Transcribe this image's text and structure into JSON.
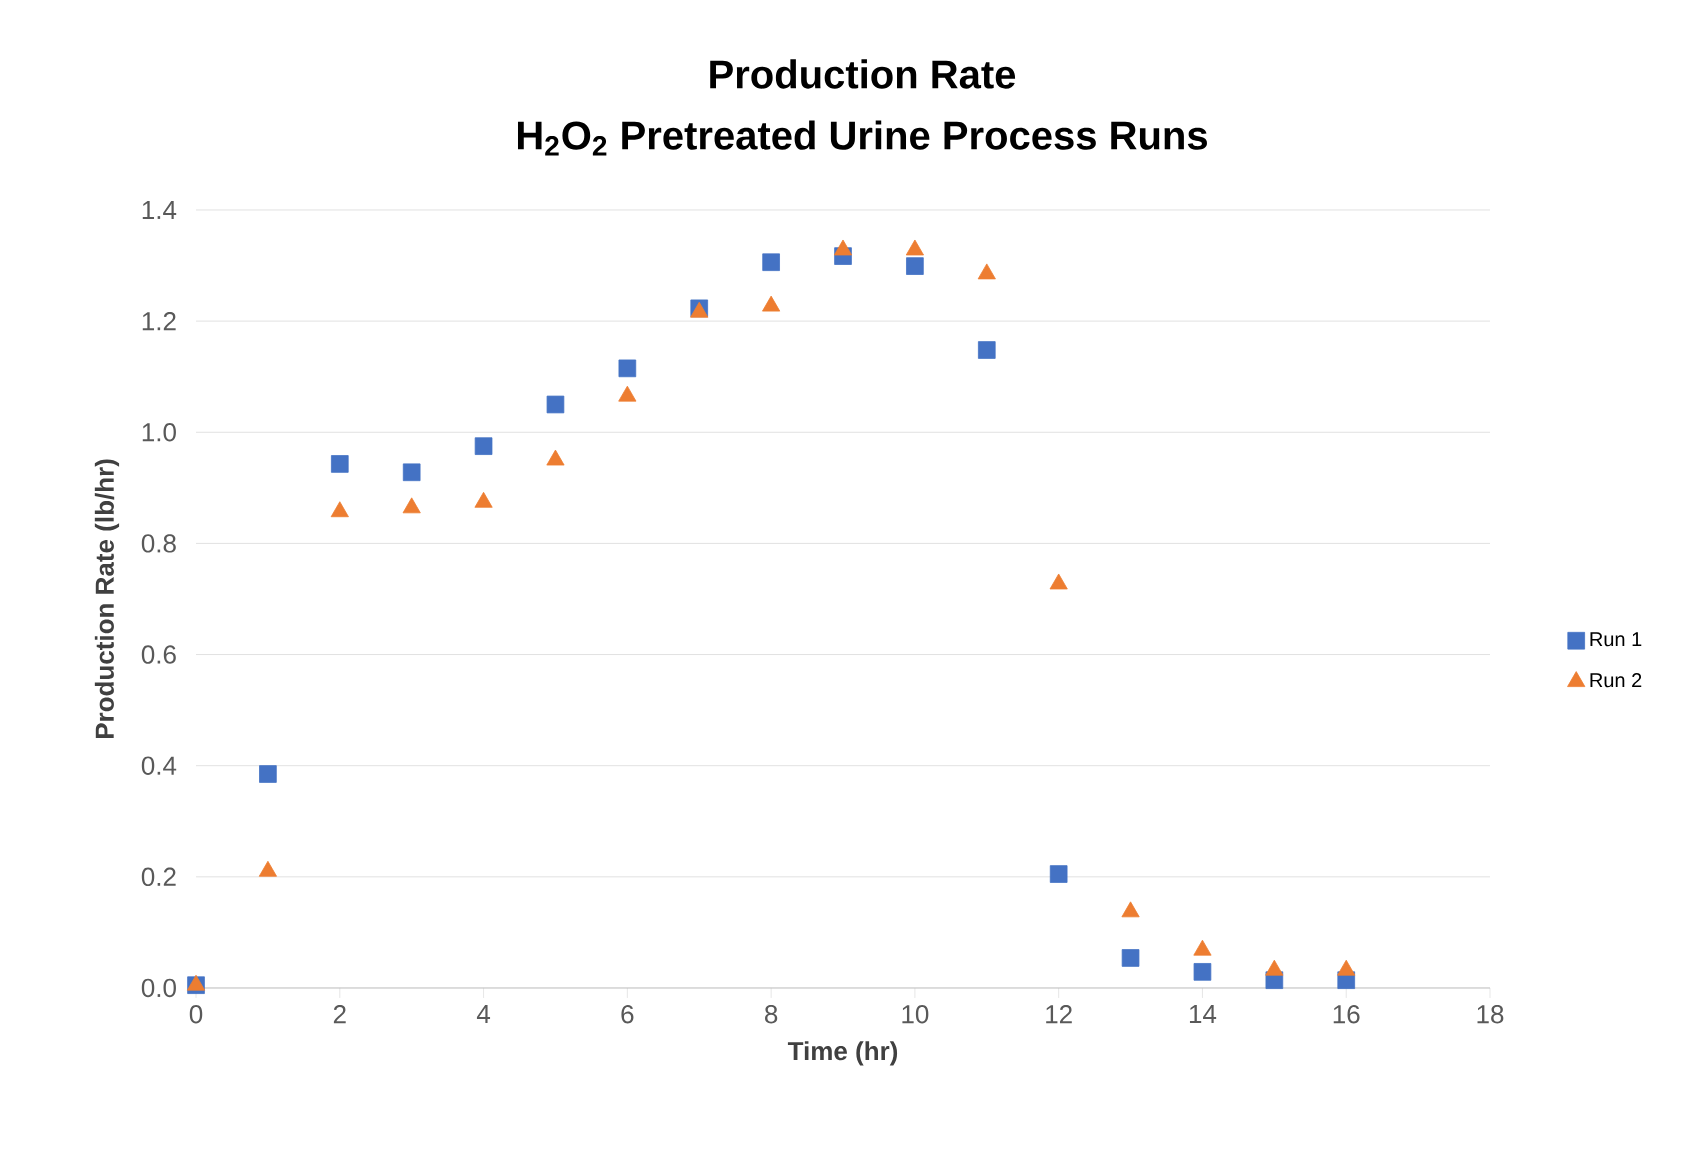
{
  "chart_data": {
    "type": "scatter",
    "title": "Production Rate",
    "subtitle": "H$_{2}$O$_{2}$ Pretreated Urine Process Runs",
    "xlabel": "Time (hr)",
    "ylabel": "Production Rate (lb/hr)",
    "x": [
      0,
      1,
      2,
      3,
      4,
      5,
      6,
      7,
      8,
      9,
      10,
      11,
      12,
      13,
      14,
      15,
      16
    ],
    "series": [
      {
        "name": "Run 1",
        "color": "#4472c4",
        "marker": "square",
        "values": [
          0.005,
          0.385,
          0.943,
          0.928,
          0.975,
          1.05,
          1.115,
          1.223,
          1.306,
          1.317,
          1.299,
          1.148,
          0.205,
          0.054,
          0.029,
          0.014,
          0.014
        ]
      },
      {
        "name": "Run 2",
        "color": "#ed7d31",
        "marker": "triangle",
        "values": [
          0.005,
          0.21,
          0.857,
          0.864,
          0.874,
          0.95,
          1.065,
          1.216,
          1.227,
          1.328,
          1.328,
          1.285,
          0.727,
          0.137,
          0.068,
          0.032,
          0.032
        ]
      }
    ],
    "xlim": [
      0,
      18
    ],
    "xticks": [
      0,
      2,
      4,
      6,
      8,
      10,
      12,
      14,
      16,
      18
    ],
    "ylim": [
      0,
      1.4
    ],
    "yticks": [
      {
        "value": 0,
        "label": "0.0"
      },
      {
        "value": 0.2,
        "label": "0.2"
      },
      {
        "value": 0.4,
        "label": "0.4"
      },
      {
        "value": 0.6,
        "label": "0.6"
      },
      {
        "value": 0.8,
        "label": "0.8"
      },
      {
        "value": 1.0,
        "label": "1.0"
      },
      {
        "value": 1.2,
        "label": "1.2"
      },
      {
        "value": 1.4,
        "label": "1.4"
      }
    ],
    "grid": "y",
    "legend": "right"
  }
}
